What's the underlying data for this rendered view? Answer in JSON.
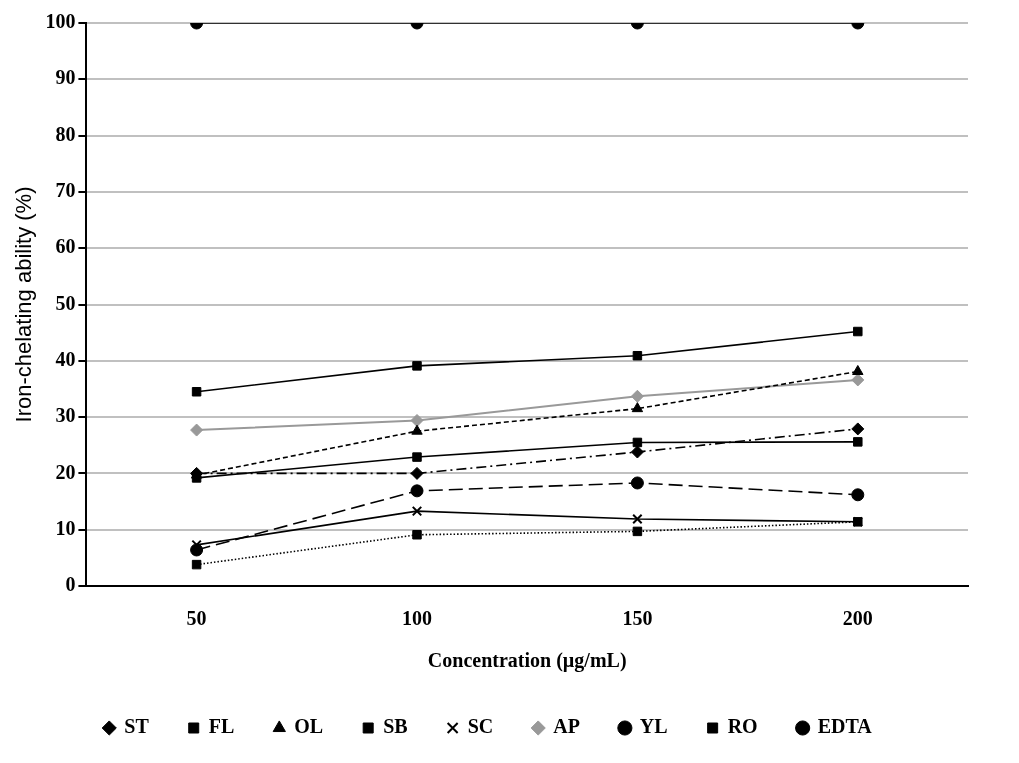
{
  "chart_data": {
    "type": "line",
    "xlabel": "Concentration (µg/mL)",
    "ylabel": "Iron-chelating ability (%)",
    "categories": [
      "50",
      "100",
      "150",
      "200"
    ],
    "ylim": [
      0,
      100
    ],
    "yticks": [
      0,
      10,
      20,
      30,
      40,
      50,
      60,
      70,
      80,
      90,
      100
    ],
    "grid": "y",
    "legend": "bottom",
    "series": [
      {
        "name": "ST",
        "color": "#000000",
        "marker": "diamond",
        "line_style": "dashdot",
        "values": [
          20.0,
          20.0,
          23.8,
          27.9
        ]
      },
      {
        "name": "FL",
        "color": "#000000",
        "marker": "square",
        "line_style": "dotted",
        "values": [
          3.8,
          9.1,
          9.7,
          11.4
        ]
      },
      {
        "name": "OL",
        "color": "#000000",
        "marker": "triangle",
        "line_style": "dashed",
        "values": [
          19.7,
          27.5,
          31.5,
          38.1
        ]
      },
      {
        "name": "SB",
        "color": "#000000",
        "marker": "square",
        "line_style": "solid",
        "values": [
          34.5,
          39.1,
          40.9,
          45.2
        ]
      },
      {
        "name": "SC",
        "color": "#000000",
        "marker": "cross",
        "line_style": "solid",
        "values": [
          7.3,
          13.3,
          11.9,
          11.4
        ]
      },
      {
        "name": "AP",
        "color": "#999999",
        "marker": "diamond",
        "line_style": "solid",
        "values": [
          27.7,
          29.4,
          33.7,
          36.6
        ]
      },
      {
        "name": "YL",
        "color": "#000000",
        "marker": "circle",
        "line_style": "longdash",
        "values": [
          6.4,
          16.9,
          18.3,
          16.2
        ]
      },
      {
        "name": "RO",
        "color": "#000000",
        "marker": "square",
        "line_style": "solid",
        "values": [
          19.2,
          22.9,
          25.5,
          25.6
        ]
      },
      {
        "name": "EDTA",
        "color": "#000000",
        "marker": "circle",
        "line_style": "solid",
        "values": [
          100,
          100,
          100,
          100
        ]
      }
    ]
  }
}
